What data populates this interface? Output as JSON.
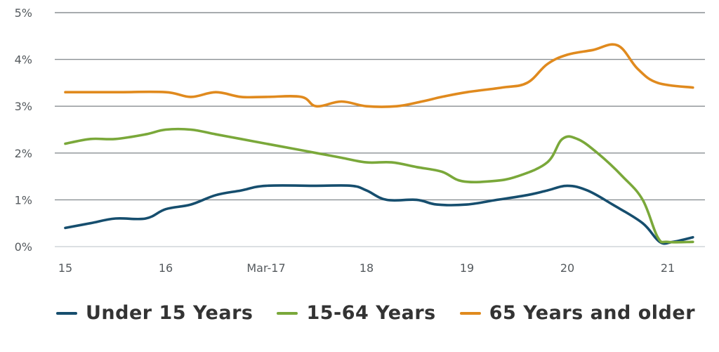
{
  "chart_data": {
    "type": "line",
    "x_ticks": [
      "15",
      "16",
      "Mar-17",
      "18",
      "19",
      "20",
      "21"
    ],
    "y_ticks": [
      "0%",
      "1%",
      "2%",
      "3%",
      "4%",
      "5%"
    ],
    "ylim": [
      0,
      5
    ],
    "xlim": [
      2015,
      2021.3
    ],
    "grid": true,
    "legend_position": "bottom",
    "series": [
      {
        "name": "Under 15 Years",
        "color": "#164e6e",
        "points": [
          [
            2015.0,
            0.4
          ],
          [
            2015.25,
            0.5
          ],
          [
            2015.5,
            0.6
          ],
          [
            2015.8,
            0.6
          ],
          [
            2016.0,
            0.8
          ],
          [
            2016.25,
            0.9
          ],
          [
            2016.5,
            1.1
          ],
          [
            2016.75,
            1.2
          ],
          [
            2017.0,
            1.3
          ],
          [
            2017.5,
            1.3
          ],
          [
            2017.85,
            1.3
          ],
          [
            2018.0,
            1.2
          ],
          [
            2018.2,
            1.0
          ],
          [
            2018.5,
            1.0
          ],
          [
            2018.7,
            0.9
          ],
          [
            2019.0,
            0.9
          ],
          [
            2019.3,
            1.0
          ],
          [
            2019.6,
            1.1
          ],
          [
            2019.8,
            1.2
          ],
          [
            2020.0,
            1.3
          ],
          [
            2020.2,
            1.2
          ],
          [
            2020.45,
            0.9
          ],
          [
            2020.75,
            0.5
          ],
          [
            2020.92,
            0.1
          ],
          [
            2021.05,
            0.1
          ],
          [
            2021.25,
            0.2
          ]
        ]
      },
      {
        "name": "15-64 Years",
        "color": "#7aa83a",
        "points": [
          [
            2015.0,
            2.2
          ],
          [
            2015.25,
            2.3
          ],
          [
            2015.5,
            2.3
          ],
          [
            2015.8,
            2.4
          ],
          [
            2016.0,
            2.5
          ],
          [
            2016.25,
            2.5
          ],
          [
            2016.5,
            2.4
          ],
          [
            2016.75,
            2.3
          ],
          [
            2017.0,
            2.2
          ],
          [
            2017.25,
            2.1
          ],
          [
            2017.5,
            2.0
          ],
          [
            2017.75,
            1.9
          ],
          [
            2018.0,
            1.8
          ],
          [
            2018.25,
            1.8
          ],
          [
            2018.5,
            1.7
          ],
          [
            2018.75,
            1.6
          ],
          [
            2018.95,
            1.4
          ],
          [
            2019.25,
            1.4
          ],
          [
            2019.5,
            1.5
          ],
          [
            2019.8,
            1.8
          ],
          [
            2019.95,
            2.3
          ],
          [
            2020.1,
            2.3
          ],
          [
            2020.3,
            2.0
          ],
          [
            2020.55,
            1.5
          ],
          [
            2020.75,
            1.0
          ],
          [
            2020.9,
            0.2
          ],
          [
            2021.0,
            0.1
          ],
          [
            2021.25,
            0.1
          ]
        ]
      },
      {
        "name": "65 Years and older",
        "color": "#e08a1e",
        "points": [
          [
            2015.0,
            3.3
          ],
          [
            2015.5,
            3.3
          ],
          [
            2016.0,
            3.3
          ],
          [
            2016.25,
            3.2
          ],
          [
            2016.5,
            3.3
          ],
          [
            2016.75,
            3.2
          ],
          [
            2017.0,
            3.2
          ],
          [
            2017.35,
            3.2
          ],
          [
            2017.5,
            3.0
          ],
          [
            2017.75,
            3.1
          ],
          [
            2018.0,
            3.0
          ],
          [
            2018.3,
            3.0
          ],
          [
            2018.55,
            3.1
          ],
          [
            2018.75,
            3.2
          ],
          [
            2019.0,
            3.3
          ],
          [
            2019.35,
            3.4
          ],
          [
            2019.6,
            3.5
          ],
          [
            2019.8,
            3.9
          ],
          [
            2020.0,
            4.1
          ],
          [
            2020.25,
            4.2
          ],
          [
            2020.5,
            4.3
          ],
          [
            2020.7,
            3.8
          ],
          [
            2020.9,
            3.5
          ],
          [
            2021.25,
            3.4
          ]
        ]
      }
    ]
  }
}
